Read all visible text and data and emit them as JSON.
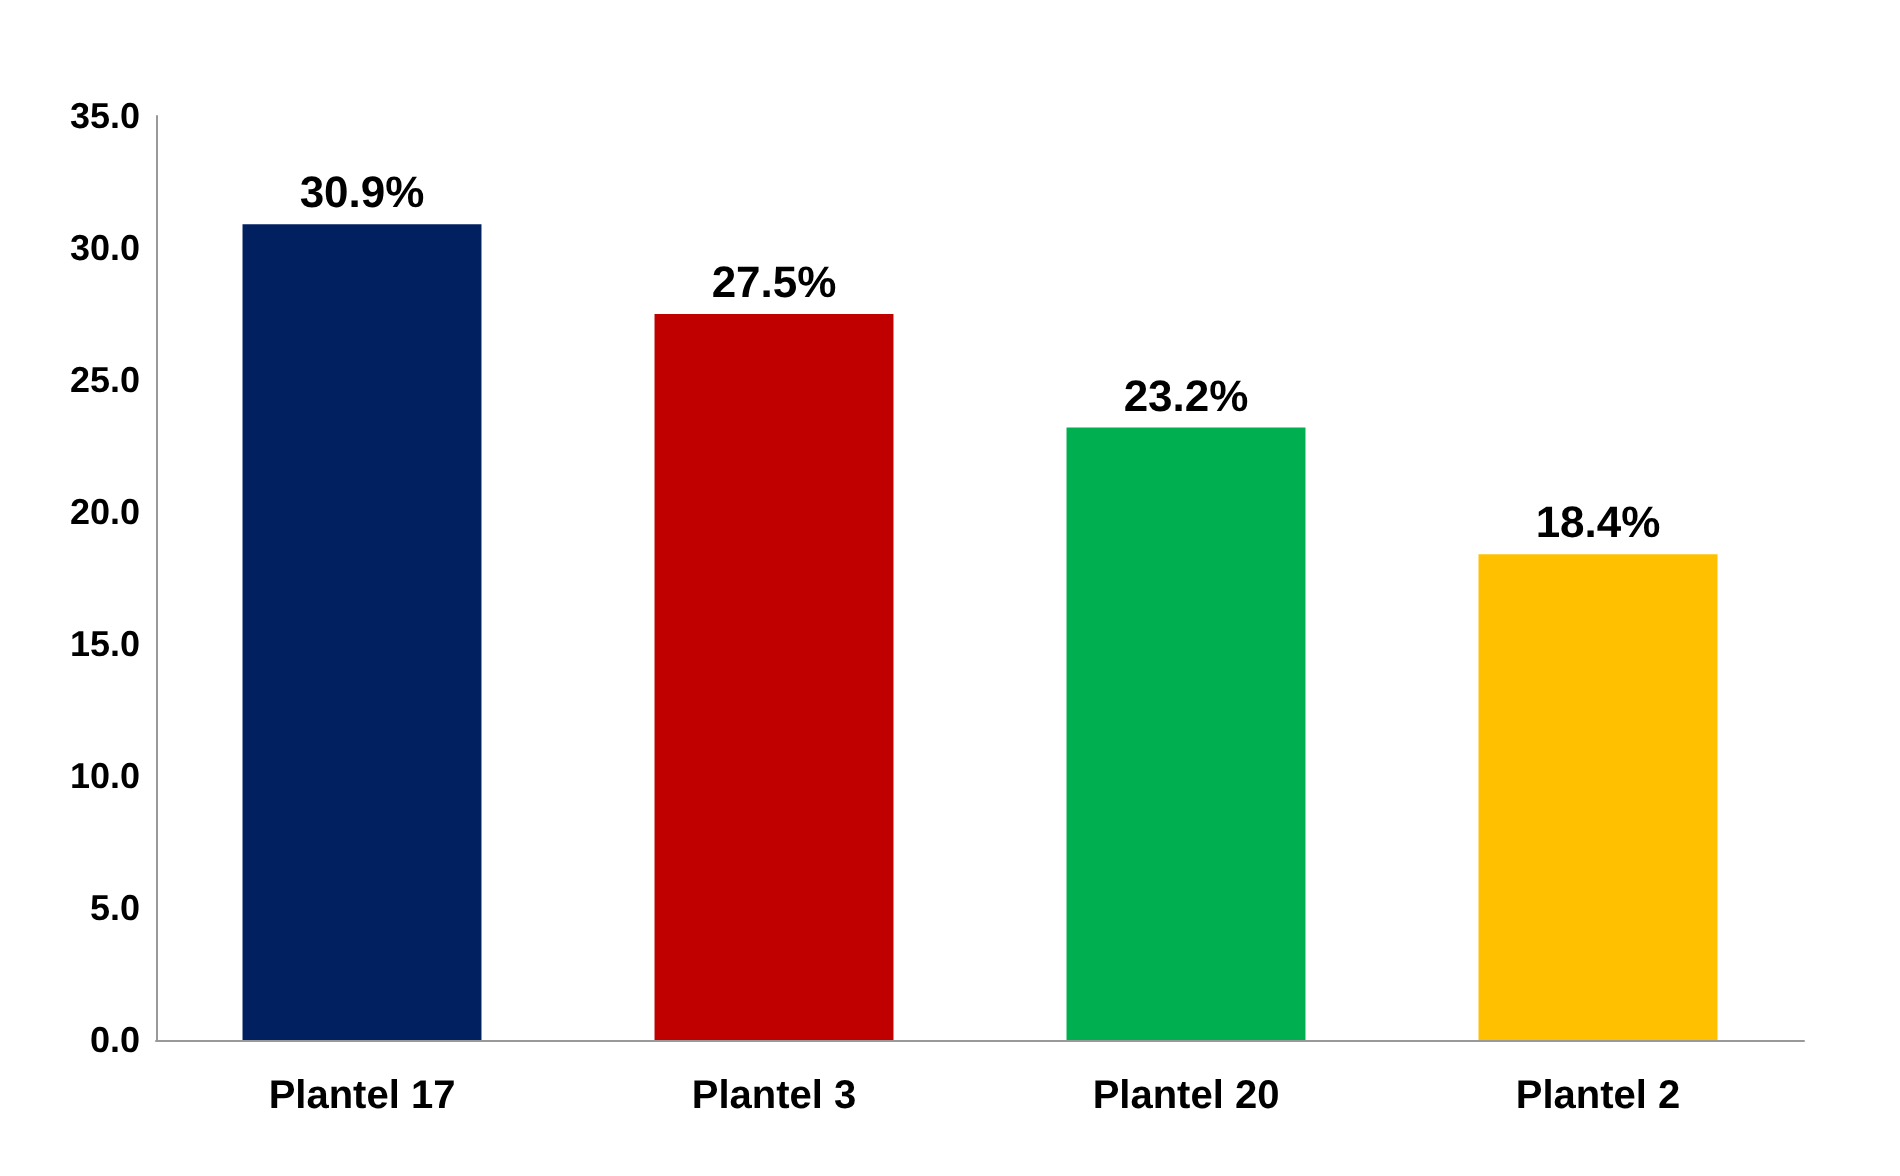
{
  "chart_data": {
    "type": "bar",
    "categories": [
      "Plantel 17",
      "Plantel 3",
      "Plantel 20",
      "Plantel 2"
    ],
    "values": [
      30.9,
      27.5,
      23.2,
      18.4
    ],
    "colors": [
      "#002060",
      "#c00000",
      "#00b050",
      "#ffc000"
    ],
    "value_labels": [
      "30.9%",
      "27.5%",
      "23.2%",
      "18.4%"
    ],
    "ylim": [
      0,
      35
    ],
    "yticks": [
      {
        "value": 0,
        "label": "0.0"
      },
      {
        "value": 5,
        "label": "5.0"
      },
      {
        "value": 10,
        "label": "10.0"
      },
      {
        "value": 15,
        "label": "15.0"
      },
      {
        "value": 20,
        "label": "20.0"
      },
      {
        "value": 25,
        "label": "25.0"
      },
      {
        "value": 30,
        "label": "30.0"
      },
      {
        "value": 35,
        "label": "35.0"
      }
    ],
    "grid": false
  }
}
